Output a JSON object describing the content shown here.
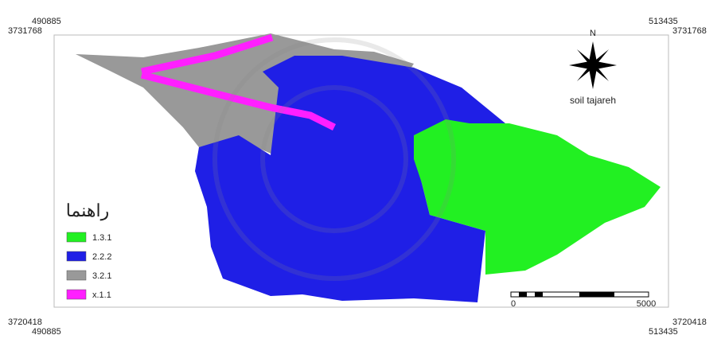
{
  "corners": {
    "top_left": {
      "x": "490885",
      "y": "3731768"
    },
    "top_right": {
      "x": "513435",
      "y": "3731768"
    },
    "bottom_left": {
      "x": "490885",
      "y": "3720418"
    },
    "bottom_right": {
      "x": "513435",
      "y": "3720418"
    }
  },
  "north": "N",
  "map_title": "soil tajareh",
  "legend": {
    "title": "راهنما",
    "items": [
      {
        "label": "1.3.1",
        "color": "#22f022"
      },
      {
        "label": "2.2.2",
        "color": "#1f1fe6"
      },
      {
        "label": "3.2.1",
        "color": "#999999"
      },
      {
        "label": "x.1.1",
        "color": "#ff1fff"
      }
    ]
  },
  "scale_bar": {
    "start": "0",
    "end": "5000"
  }
}
